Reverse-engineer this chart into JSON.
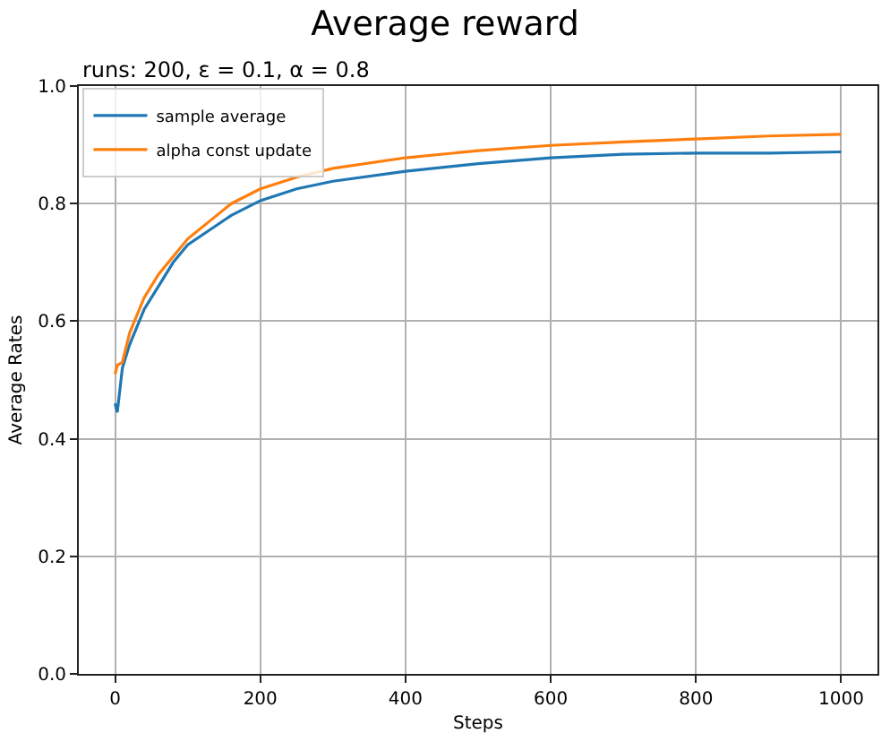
{
  "chart_data": {
    "type": "line",
    "title": "Average reward",
    "subtitle": "runs: 200, ε = 0.1, α = 0.8",
    "xlabel": "Steps",
    "ylabel": "Average Rates",
    "x": [
      0,
      3,
      10,
      20,
      40,
      60,
      80,
      100,
      130,
      160,
      200,
      250,
      300,
      400,
      500,
      600,
      700,
      800,
      900,
      1000
    ],
    "series": [
      {
        "name": "sample average",
        "color": "#1f77b4",
        "values": [
          0.46,
          0.445,
          0.52,
          0.56,
          0.62,
          0.66,
          0.7,
          0.73,
          0.755,
          0.78,
          0.805,
          0.825,
          0.838,
          0.855,
          0.868,
          0.878,
          0.884,
          0.886,
          0.886,
          0.888
        ]
      },
      {
        "name": "alpha const update",
        "color": "#ff7f0e",
        "values": [
          0.51,
          0.525,
          0.53,
          0.58,
          0.64,
          0.68,
          0.71,
          0.74,
          0.77,
          0.8,
          0.825,
          0.845,
          0.86,
          0.878,
          0.89,
          0.899,
          0.905,
          0.91,
          0.915,
          0.918
        ]
      }
    ],
    "xlim": [
      -50,
      1050
    ],
    "xticks": [
      0,
      200,
      400,
      600,
      800,
      1000
    ],
    "ylim": [
      0,
      1
    ],
    "yticks": [
      {
        "value": 0,
        "label": "0.0"
      },
      0.2,
      0.4,
      0.6,
      0.8,
      {
        "value": 1,
        "label": "1.0"
      }
    ],
    "grid": true,
    "legend": "top left",
    "line_style": "solid",
    "marker": "none"
  }
}
